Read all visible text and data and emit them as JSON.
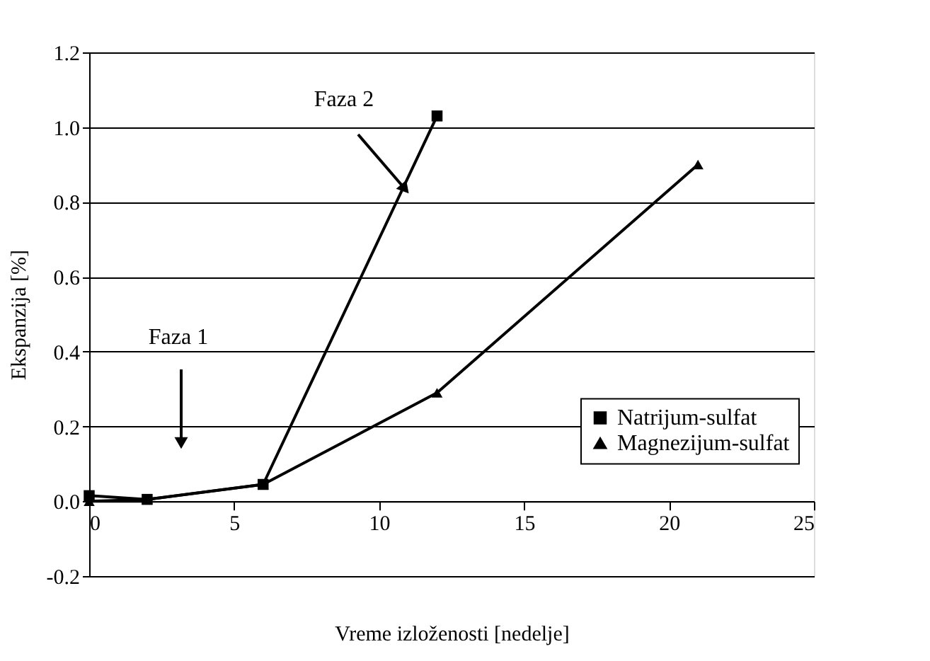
{
  "chart_data": {
    "type": "line",
    "xlabel": "Vreme izloženosti [nedelje]",
    "ylabel": "Ekspanzija [%]",
    "xlim": [
      0,
      25
    ],
    "xticks": [
      0,
      5,
      10,
      15,
      20,
      25
    ],
    "ylim": [
      -0.2,
      1.2
    ],
    "yticks": [
      {
        "value": -0.2,
        "label": "-0.2"
      },
      {
        "value": 0,
        "label": "0.0"
      },
      {
        "value": 0.2,
        "label": "0.2"
      },
      {
        "value": 0.4,
        "label": "0.4"
      },
      {
        "value": 0.6,
        "label": "0.6"
      },
      {
        "value": 0.8,
        "label": "0.8"
      },
      {
        "value": 1.0,
        "label": "1.0"
      },
      {
        "value": 1.2,
        "label": "1.2"
      }
    ],
    "grid": "y",
    "legend": "right",
    "line_style": "solid",
    "series": [
      {
        "name": "Natrijum-sulfat",
        "color": "#000000",
        "marker": "square",
        "x": [
          0,
          2,
          6,
          12
        ],
        "values": [
          0.015,
          0.005,
          0.045,
          1.03
        ]
      },
      {
        "name": "Magnezijum-sulfat",
        "color": "#000000",
        "marker": "triangle",
        "x": [
          0,
          2,
          6,
          12,
          21
        ],
        "values": [
          0.0,
          0.005,
          0.045,
          0.29,
          0.9
        ]
      }
    ],
    "annotations": [
      "Faza 1",
      "Faza 2"
    ]
  }
}
